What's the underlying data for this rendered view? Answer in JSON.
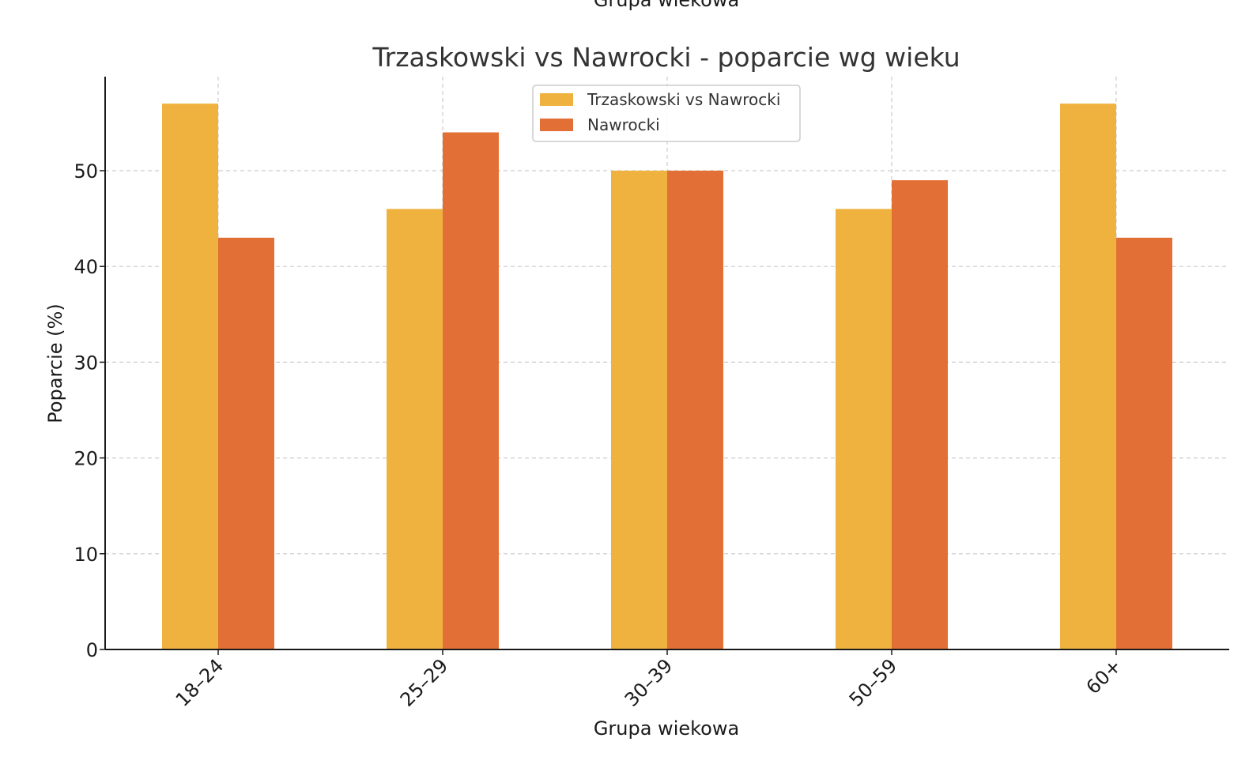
{
  "top_cut_label": "Grupa wiekowa",
  "chart_data": {
    "type": "bar",
    "title": "Trzaskowski vs Nawrocki - poparcie wg wieku",
    "xlabel": "Grupa wiekowa",
    "ylabel": "Poparcie (%)",
    "categories": [
      "18–24",
      "25–29",
      "30–39",
      "50–59",
      "60+"
    ],
    "series": [
      {
        "name": "Trzaskowski vs Nawrocki",
        "color": "#f0b23e",
        "values": [
          57,
          46,
          50,
          46,
          57
        ]
      },
      {
        "name": "Nawrocki",
        "color": "#e27036",
        "values": [
          43,
          54,
          50,
          49,
          43
        ]
      }
    ],
    "ylim": [
      0,
      60
    ],
    "yticks": [
      0,
      10,
      20,
      30,
      40,
      50
    ],
    "grid": true,
    "legend": "top-center"
  }
}
